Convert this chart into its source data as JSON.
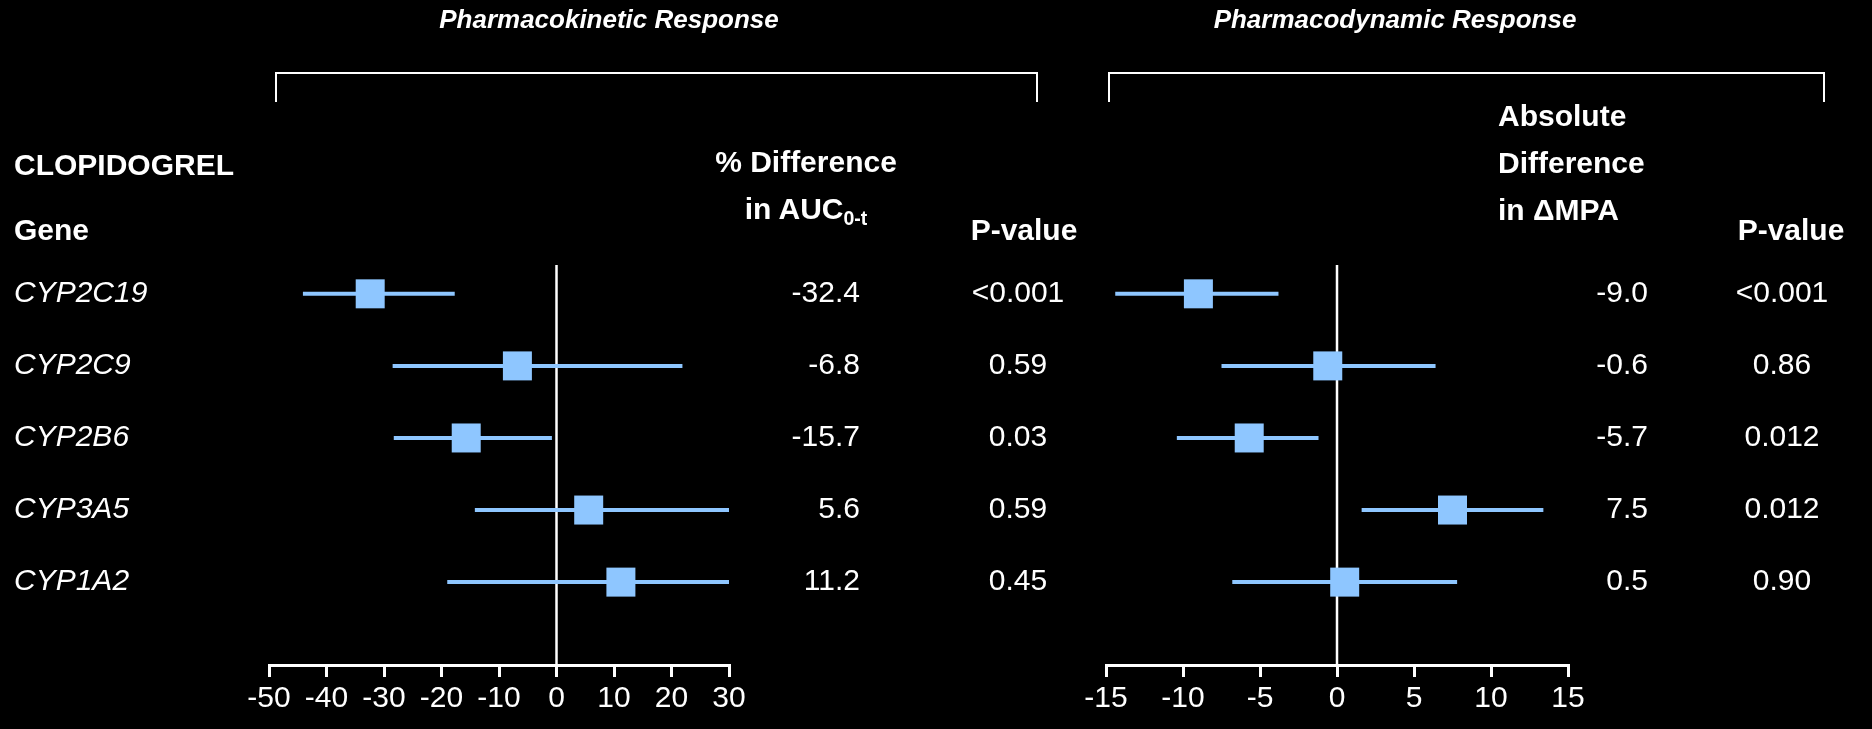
{
  "chart_data": [
    {
      "type": "scatter",
      "orientation": "horizontal",
      "title": "Pharmacokinetic Response",
      "ylabel": "Gene",
      "marker": "square",
      "categories": [
        "CYP2C19",
        "CYP2C9",
        "CYP2B6",
        "CYP3A5",
        "CYP1A2"
      ],
      "series": [
        {
          "color": "#8ec6ff",
          "values": [
            -32.4,
            -6.8,
            -15.7,
            5.6,
            11.2
          ],
          "errors": [
            [
              -44.1,
              -17.7
            ],
            [
              -28.5,
              21.9
            ],
            [
              -28.3,
              -0.8
            ],
            [
              -14.2,
              30
            ],
            [
              -19,
              30
            ]
          ],
          "value_labels": [
            "-32.4",
            "-6.8",
            "-15.7",
            "5.6",
            "11.2"
          ]
        }
      ],
      "xlim": [
        -50,
        30
      ],
      "xticks": [
        -50,
        -40,
        -30,
        -20,
        -10,
        0,
        10,
        20,
        30
      ],
      "ref_lines": [
        {
          "axis": "x",
          "value": 0,
          "color": "#ffffff"
        }
      ],
      "annotations": [
        "CLOPIDOGREL",
        "% Difference\nin AUC$_{0-t}$",
        "P-value",
        "<0.001",
        "0.59",
        "0.03",
        "0.59",
        "0.45"
      ]
    },
    {
      "type": "scatter",
      "orientation": "horizontal",
      "title": "Pharmacodynamic Response",
      "marker": "square",
      "tick_labels": "x",
      "categories": [
        null,
        null,
        null,
        null,
        null
      ],
      "series": [
        {
          "color": "#8ec6ff",
          "values": [
            -9.0,
            -0.6,
            -5.7,
            7.5,
            0.5
          ],
          "errors": [
            [
              -14.4,
              -3.8
            ],
            [
              -7.5,
              6.4
            ],
            [
              -10.4,
              -1.2
            ],
            [
              1.6,
              13.4
            ],
            [
              -6.8,
              7.8
            ]
          ],
          "value_labels": [
            "-9.0",
            "-0.6",
            "-5.7",
            "7.5",
            "0.5"
          ]
        }
      ],
      "xlim": [
        -15,
        15
      ],
      "xticks": [
        -15,
        -10,
        -5,
        0,
        5,
        10,
        15
      ],
      "ref_lines": [
        {
          "axis": "x",
          "value": 0,
          "color": "#ffffff"
        }
      ],
      "annotations": [
        "Absolute\nDifference\nin ΔMPA",
        "P-value",
        "<0.001",
        "0.86",
        "0.012",
        "0.012",
        "0.90"
      ]
    }
  ]
}
